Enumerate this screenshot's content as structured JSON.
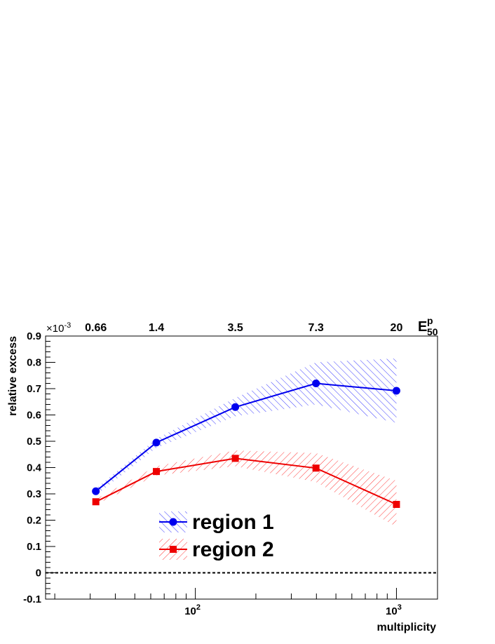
{
  "chart_data": {
    "type": "line",
    "title": "",
    "xlabel": "multiplicity",
    "ylabel": "relative excess",
    "y_multiplier_label": "×10",
    "y_multiplier_exp": "-3",
    "x_scale": "log",
    "xlim": [
      18,
      1600
    ],
    "ylim": [
      -0.1,
      0.9
    ],
    "x_tick_labels": [
      {
        "value": 100,
        "base": "10",
        "exp": "2"
      },
      {
        "value": 1000,
        "base": "10",
        "exp": "3"
      }
    ],
    "y_ticks": [
      -0.1,
      0,
      0.1,
      0.2,
      0.3,
      0.4,
      0.5,
      0.6,
      0.7,
      0.8,
      0.9
    ],
    "y_tick_labels": [
      "-0.1",
      "0",
      "0.1",
      "0.2",
      "0.3",
      "0.4",
      "0.5",
      "0.6",
      "0.7",
      "0.8",
      "0.9"
    ],
    "top_axis": {
      "label_base": "E",
      "label_sup": "p",
      "label_sub": "50",
      "labels": [
        {
          "x": 32,
          "text": "0.66"
        },
        {
          "x": 64,
          "text": "1.4"
        },
        {
          "x": 158,
          "text": "3.5"
        },
        {
          "x": 398,
          "text": "7.3"
        },
        {
          "x": 1000,
          "text": "20"
        }
      ]
    },
    "reference_line": {
      "y": 0,
      "style": "dashed"
    },
    "legend_position": "bottom-center",
    "series": [
      {
        "name": "region 1",
        "color": "#0000ee",
        "marker": "circle",
        "x": [
          32,
          64,
          158,
          398,
          1000
        ],
        "y": [
          0.31,
          0.495,
          0.63,
          0.72,
          0.692
        ],
        "band_low": [
          0.295,
          0.475,
          0.595,
          0.64,
          0.57
        ],
        "band_high": [
          0.32,
          0.51,
          0.665,
          0.8,
          0.815
        ]
      },
      {
        "name": "region 2",
        "color": "#ee0000",
        "marker": "square",
        "x": [
          32,
          64,
          158,
          398,
          1000
        ],
        "y": [
          0.27,
          0.385,
          0.435,
          0.398,
          0.26
        ],
        "band_low": [
          0.26,
          0.37,
          0.405,
          0.345,
          0.175
        ],
        "band_high": [
          0.28,
          0.405,
          0.465,
          0.455,
          0.35
        ]
      }
    ]
  }
}
